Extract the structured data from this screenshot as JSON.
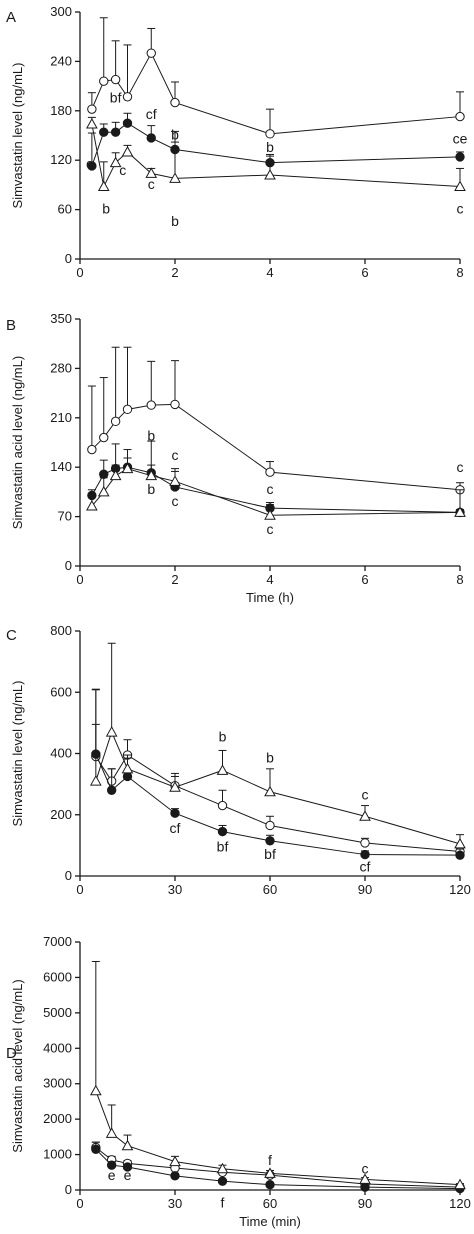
{
  "chart_data": [
    {
      "type": "line",
      "panel_label": "A",
      "ylabel": "Simvastatin level (ng/mL)",
      "xlabel": "",
      "xlim": [
        0,
        8
      ],
      "ylim": [
        0,
        300
      ],
      "xticks": [
        0,
        2,
        4,
        6,
        8
      ],
      "yticks": [
        0,
        60,
        120,
        180,
        240,
        300
      ],
      "x": [
        0.25,
        0.5,
        0.75,
        1,
        1.5,
        2,
        4,
        8
      ],
      "series": [
        {
          "marker": "open-circle",
          "values": [
            182,
            216,
            218,
            197,
            250,
            190,
            152,
            173
          ],
          "errors": [
            20,
            77,
            47,
            63,
            30,
            25,
            30,
            30
          ]
        },
        {
          "marker": "filled-circle",
          "values": [
            113,
            154,
            154,
            165,
            147,
            133,
            117,
            124
          ],
          "errors": [
            40,
            10,
            12,
            12,
            15,
            22,
            10,
            6
          ]
        },
        {
          "marker": "open-triangle",
          "values": [
            164,
            88,
            117,
            130,
            104,
            98,
            102,
            88
          ],
          "errors": [
            8,
            30,
            12,
            8,
            6,
            44,
            23,
            22
          ]
        }
      ],
      "annotations": [
        {
          "text": "c",
          "x": 0.2,
          "y": 110
        },
        {
          "text": "b",
          "x": 0.55,
          "y": 55
        },
        {
          "text": "bf",
          "x": 0.75,
          "y": 190
        },
        {
          "text": "c",
          "x": 0.9,
          "y": 102
        },
        {
          "text": "cf",
          "x": 1.5,
          "y": 170
        },
        {
          "text": "c",
          "x": 1.5,
          "y": 85
        },
        {
          "text": "b",
          "x": 2.0,
          "y": 145
        },
        {
          "text": "b",
          "x": 2.0,
          "y": 40
        },
        {
          "text": "b",
          "x": 4.0,
          "y": 130
        },
        {
          "text": "ce",
          "x": 8.0,
          "y": 140
        },
        {
          "text": "c",
          "x": 8.0,
          "y": 55
        }
      ]
    },
    {
      "type": "line",
      "panel_label": "B",
      "ylabel": "Simvastatin acid level (ng/mL)",
      "xlabel": "Time (h)",
      "xlim": [
        0,
        8
      ],
      "ylim": [
        0,
        350
      ],
      "xticks": [
        0,
        2,
        4,
        6,
        8
      ],
      "yticks": [
        0,
        70,
        140,
        210,
        280,
        350
      ],
      "x": [
        0.25,
        0.5,
        0.75,
        1,
        1.5,
        2,
        4,
        8
      ],
      "series": [
        {
          "marker": "open-circle",
          "values": [
            165,
            182,
            205,
            222,
            228,
            229,
            133,
            108
          ],
          "errors": [
            90,
            85,
            105,
            88,
            62,
            62,
            15,
            10
          ]
        },
        {
          "marker": "filled-circle",
          "values": [
            100,
            130,
            138,
            140,
            132,
            112,
            82,
            76
          ],
          "errors": [
            8,
            20,
            35,
            25,
            45,
            22,
            8,
            4
          ]
        },
        {
          "marker": "open-triangle",
          "values": [
            85,
            105,
            128,
            138,
            128,
            120,
            72,
            76
          ],
          "errors": [
            15,
            20,
            15,
            15,
            15,
            18,
            15,
            32
          ]
        }
      ],
      "annotations": [
        {
          "text": "b",
          "x": 1.5,
          "y": 178
        },
        {
          "text": "b",
          "x": 1.5,
          "y": 102
        },
        {
          "text": "c",
          "x": 2.0,
          "y": 150
        },
        {
          "text": "c",
          "x": 2.0,
          "y": 85
        },
        {
          "text": "c",
          "x": 4.0,
          "y": 102
        },
        {
          "text": "c",
          "x": 4.0,
          "y": 45
        },
        {
          "text": "c",
          "x": 8.0,
          "y": 133
        }
      ]
    },
    {
      "type": "line",
      "panel_label": "C",
      "ylabel": "Simvastatin level (ng/mL)",
      "xlabel": "",
      "xlim": [
        0,
        120
      ],
      "ylim": [
        0,
        800
      ],
      "xticks": [
        0,
        30,
        60,
        90,
        120
      ],
      "yticks": [
        0,
        200,
        400,
        600,
        800
      ],
      "x": [
        5,
        10,
        15,
        30,
        45,
        60,
        90,
        120
      ],
      "series": [
        {
          "marker": "open-circle",
          "values": [
            390,
            310,
            395,
            295,
            230,
            165,
            108,
            80
          ],
          "errors": [
            220,
            40,
            50,
            40,
            50,
            30,
            15,
            20
          ]
        },
        {
          "marker": "filled-circle",
          "values": [
            398,
            280,
            325,
            205,
            145,
            115,
            70,
            68
          ],
          "errors": [
            210,
            70,
            60,
            15,
            20,
            18,
            12,
            20
          ]
        },
        {
          "marker": "open-triangle",
          "values": [
            310,
            470,
            350,
            290,
            345,
            275,
            195,
            105
          ],
          "errors": [
            185,
            290,
            45,
            35,
            65,
            75,
            35,
            30
          ]
        }
      ],
      "annotations": [
        {
          "text": "cf",
          "x": 30,
          "y": 140
        },
        {
          "text": "b",
          "x": 45,
          "y": 440
        },
        {
          "text": "bf",
          "x": 45,
          "y": 80
        },
        {
          "text": "b",
          "x": 60,
          "y": 370
        },
        {
          "text": "bf",
          "x": 60,
          "y": 55
        },
        {
          "text": "c",
          "x": 90,
          "y": 250
        },
        {
          "text": "cf",
          "x": 90,
          "y": 15
        }
      ]
    },
    {
      "type": "line",
      "panel_label": "D",
      "ylabel": "Simvastatin acid level (ng/mL)",
      "xlabel": "Time (min)",
      "xlim": [
        0,
        120
      ],
      "ylim": [
        0,
        7000
      ],
      "xticks": [
        0,
        30,
        60,
        90,
        120
      ],
      "yticks": [
        0,
        1000,
        2000,
        3000,
        4000,
        5000,
        6000,
        7000
      ],
      "x": [
        5,
        10,
        15,
        30,
        45,
        60,
        90,
        120
      ],
      "series": [
        {
          "marker": "open-circle",
          "values": [
            1200,
            850,
            750,
            620,
            500,
            420,
            170,
            80
          ],
          "errors": [
            150,
            100,
            80,
            80,
            60,
            50,
            30,
            20
          ]
        },
        {
          "marker": "filled-circle",
          "values": [
            1150,
            700,
            650,
            400,
            250,
            150,
            80,
            40
          ],
          "errors": [
            200,
            100,
            80,
            60,
            40,
            30,
            20,
            10
          ]
        },
        {
          "marker": "open-triangle",
          "values": [
            2800,
            1600,
            1250,
            800,
            600,
            470,
            300,
            150
          ],
          "errors": [
            3650,
            800,
            300,
            150,
            100,
            80,
            50,
            30
          ]
        }
      ],
      "annotations": [
        {
          "text": "e",
          "x": 10,
          "y": 280
        },
        {
          "text": "e",
          "x": 15,
          "y": 280
        },
        {
          "text": "f",
          "x": 45,
          "y": -500
        },
        {
          "text": "f",
          "x": 60,
          "y": 700
        },
        {
          "text": "c",
          "x": 90,
          "y": 470
        }
      ]
    }
  ]
}
